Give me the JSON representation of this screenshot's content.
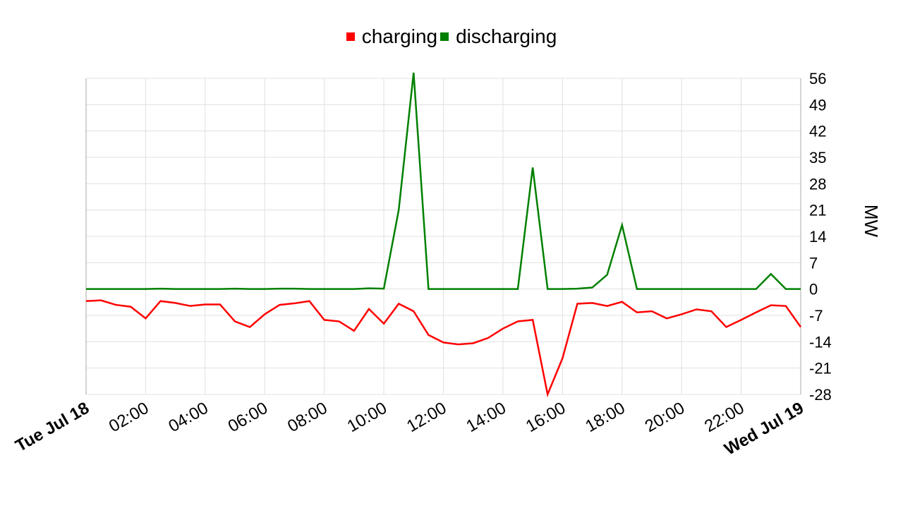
{
  "legend": [
    {
      "label": "charging",
      "color": "#ff0000"
    },
    {
      "label": "discharging",
      "color": "#008000"
    }
  ],
  "chart_data": {
    "type": "line",
    "ylabel": "MW",
    "ylim": [
      -28,
      56
    ],
    "y_ticks": [
      "56",
      "49",
      "42",
      "35",
      "28",
      "21",
      "14",
      "7",
      "0",
      "-7",
      "-14",
      "-21",
      "-28"
    ],
    "x_ticks": [
      "Tue Jul 18",
      "02:00",
      "04:00",
      "06:00",
      "08:00",
      "10:00",
      "12:00",
      "14:00",
      "16:00",
      "18:00",
      "20:00",
      "22:00",
      "Wed Jul 19"
    ],
    "x_tick_bold": [
      true,
      false,
      false,
      false,
      false,
      false,
      false,
      false,
      false,
      false,
      false,
      false,
      true
    ],
    "x_range_hours": [
      0,
      24
    ],
    "grid": true,
    "legend_position": "top-center",
    "y_axis_position": "right",
    "series": [
      {
        "name": "charging",
        "color": "#ff0000",
        "x_hours": [
          0,
          0.5,
          1,
          1.5,
          2,
          2.5,
          3,
          3.5,
          4,
          4.5,
          5,
          5.5,
          6,
          6.5,
          7,
          7.5,
          8,
          8.5,
          9,
          9.5,
          10,
          10.5,
          11,
          11.5,
          12,
          12.5,
          13,
          13.5,
          14,
          14.5,
          15,
          15.5,
          16,
          16.5,
          17,
          17.5,
          18,
          18.5,
          19,
          19.5,
          20,
          20.5,
          21,
          21.5,
          22,
          22.5,
          23,
          23.5,
          24
        ],
        "values": [
          -3.2,
          -3,
          -4.2,
          -4.7,
          -7.8,
          -3.2,
          -3.7,
          -4.5,
          -4.1,
          -4.1,
          -8.6,
          -10.1,
          -6.7,
          -4.2,
          -3.8,
          -3.2,
          -8.2,
          -8.6,
          -11.1,
          -5.3,
          -9.2,
          -3.9,
          -5.9,
          -12.2,
          -14.2,
          -14.7,
          -14.4,
          -13,
          -10.5,
          -8.6,
          -8.2,
          -28,
          -18.4,
          -3.9,
          -3.7,
          -4.5,
          -3.4,
          -6.2,
          -5.9,
          -7.8,
          -6.7,
          -5.4,
          -5.9,
          -10.1,
          -8.2,
          -6.2,
          -4.3,
          -4.5,
          -10.1
        ]
      },
      {
        "name": "discharging",
        "color": "#008000",
        "x_hours": [
          0,
          0.5,
          1,
          1.5,
          2,
          2.5,
          3,
          3.5,
          4,
          4.5,
          5,
          5.5,
          6,
          6.5,
          7,
          7.5,
          8,
          8.5,
          9,
          9.5,
          10,
          10.5,
          11,
          11.5,
          12,
          12.5,
          13,
          13.5,
          14,
          14.5,
          15,
          15.5,
          16,
          16.5,
          17,
          17.5,
          18,
          18.5,
          19,
          19.5,
          20,
          20.5,
          21,
          21.5,
          22,
          22.5,
          23,
          23.5,
          24
        ],
        "values": [
          0,
          0,
          0,
          0,
          0,
          0.1,
          0,
          0,
          0,
          0,
          0.1,
          0,
          0,
          0.1,
          0.1,
          0,
          0,
          0,
          0,
          0.2,
          0.1,
          21,
          57.5,
          0,
          0,
          0,
          0,
          0,
          0,
          0,
          32.3,
          0,
          0,
          0.1,
          0.4,
          3.8,
          17,
          0,
          0,
          0,
          0,
          0,
          0,
          0,
          0,
          0,
          4,
          0,
          0
        ]
      }
    ]
  }
}
